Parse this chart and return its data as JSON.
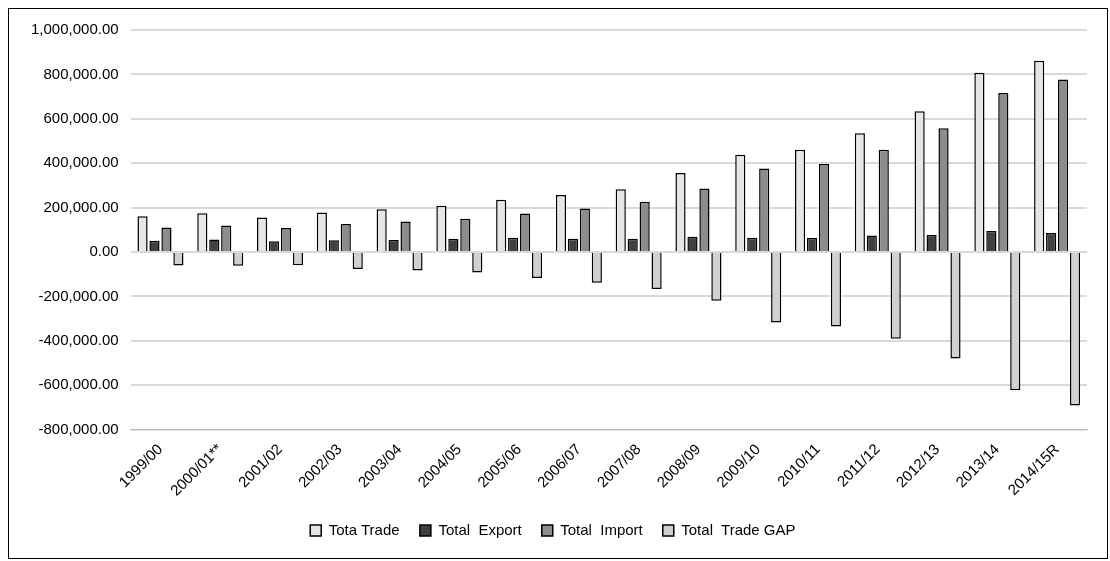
{
  "chart_data": {
    "type": "bar",
    "categories": [
      "1999/00",
      "2000/01**",
      "2001/02",
      "2002/03",
      "2003/04",
      "2004/05",
      "2005/06",
      "2006/07",
      "2007/08",
      "2008/09",
      "2009/10",
      "2010/11",
      "2011/12",
      "2012/13",
      "2013/14",
      "2014/15R"
    ],
    "series": [
      {
        "name": "Tota Trade",
        "color": "#e6e6e6",
        "values": [
          161000,
          175000,
          156000,
          178000,
          193000,
          208000,
          235000,
          257000,
          283000,
          356000,
          438000,
          461000,
          535000,
          634000,
          807000,
          861000
        ]
      },
      {
        "name": "Total  Export",
        "color": "#404040",
        "values": [
          51000,
          57000,
          49000,
          53000,
          54000,
          60000,
          64000,
          60000,
          60000,
          69000,
          64000,
          63000,
          74000,
          77000,
          95000,
          86000
        ]
      },
      {
        "name": "Total  Import",
        "color": "#8c8c8c",
        "values": [
          111000,
          119000,
          108000,
          126000,
          138000,
          150000,
          174000,
          196000,
          226000,
          286000,
          376000,
          397000,
          461000,
          557000,
          716000,
          777000
        ]
      },
      {
        "name": "Total  Trade GAP",
        "color": "#d0d0d0",
        "values": [
          -61000,
          -62000,
          -60000,
          -76000,
          -83000,
          -92000,
          -117000,
          -138000,
          -167000,
          -219000,
          -317000,
          -335000,
          -390000,
          -480000,
          -622000,
          -691000
        ]
      }
    ],
    "ylim": [
      -800000,
      1000000
    ],
    "yticks": [
      {
        "value": -800000,
        "label": "-800,000.00"
      },
      {
        "value": -600000,
        "label": "-600,000.00"
      },
      {
        "value": -400000,
        "label": "-400,000.00"
      },
      {
        "value": -200000,
        "label": "-200,000.00"
      },
      {
        "value": 0,
        "label": "0.00"
      },
      {
        "value": 200000,
        "label": "200,000.00"
      },
      {
        "value": 400000,
        "label": "400,000.00"
      },
      {
        "value": 600000,
        "label": "600,000.00"
      },
      {
        "value": 800000,
        "label": "800,000.00"
      },
      {
        "value": 1000000,
        "label": "1,000,000.00"
      }
    ],
    "grid": "y",
    "legend": "bottom"
  }
}
